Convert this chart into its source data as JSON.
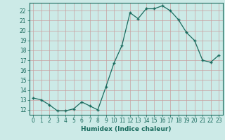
{
  "x": [
    0,
    1,
    2,
    3,
    4,
    5,
    6,
    7,
    8,
    9,
    10,
    11,
    12,
    13,
    14,
    15,
    16,
    17,
    18,
    19,
    20,
    21,
    22,
    23
  ],
  "y": [
    13.2,
    13.0,
    12.5,
    11.9,
    11.9,
    12.1,
    12.8,
    12.4,
    12.0,
    14.3,
    16.7,
    18.5,
    21.8,
    21.2,
    22.2,
    22.2,
    22.5,
    22.0,
    21.1,
    19.8,
    19.0,
    17.0,
    16.8,
    17.5
  ],
  "line_color": "#1a6b5e",
  "bg_color": "#cceae7",
  "grid_color": "#c8a0a0",
  "xlabel": "Humidex (Indice chaleur)",
  "ylabel_ticks": [
    12,
    13,
    14,
    15,
    16,
    17,
    18,
    19,
    20,
    21,
    22
  ],
  "ylim": [
    11.5,
    22.8
  ],
  "xlim": [
    -0.5,
    23.5
  ],
  "tick_fontsize": 5.5,
  "xlabel_fontsize": 6.5
}
